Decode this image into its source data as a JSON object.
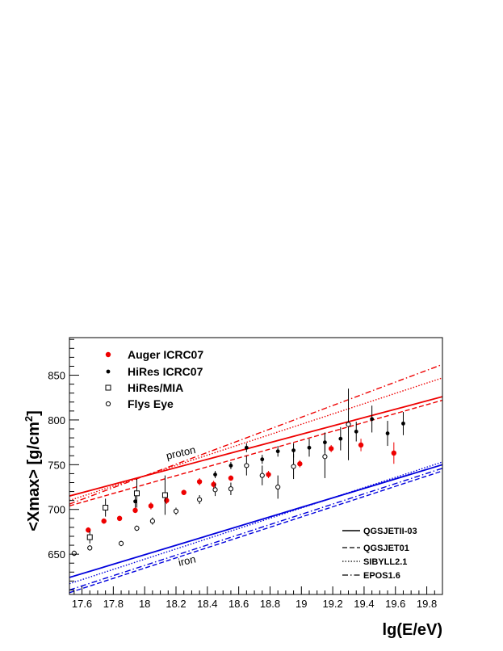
{
  "chart_data": {
    "type": "scatter",
    "xlabel": "lg(E/eV)",
    "ylabel": "<Xmax> [g/cm",
    "ylabel_sup": "2",
    "ylabel_end": "]",
    "xlim": [
      17.52,
      19.9
    ],
    "ylim": [
      605,
      892
    ],
    "x_ticks": [
      17.6,
      17.8,
      18,
      18.2,
      18.4,
      18.6,
      18.8,
      19,
      19.2,
      19.4,
      19.6,
      19.8
    ],
    "x_tick_labels": [
      "17.6",
      "17.8",
      "18",
      "18.2",
      "18.4",
      "18.6",
      "18.8",
      "19",
      "19.2",
      "19.4",
      "19.6",
      "19.8"
    ],
    "y_ticks": [
      650,
      700,
      750,
      800,
      850
    ],
    "y_tick_labels": [
      "650",
      "700",
      "750",
      "800",
      "850"
    ],
    "grid": false,
    "legend_placement": "top-left",
    "data_series": [
      {
        "name": "Auger ICRC07",
        "marker": "filled-circle",
        "color": "#ee0000",
        "points": [
          {
            "x": 17.64,
            "y": 677,
            "err": 3
          },
          {
            "x": 17.74,
            "y": 687,
            "err": 3
          },
          {
            "x": 17.84,
            "y": 690,
            "err": 3
          },
          {
            "x": 17.94,
            "y": 699,
            "err": 3
          },
          {
            "x": 18.04,
            "y": 704,
            "err": 4
          },
          {
            "x": 18.14,
            "y": 710,
            "err": 4
          },
          {
            "x": 18.25,
            "y": 719,
            "err": 3
          },
          {
            "x": 18.35,
            "y": 731,
            "err": 4
          },
          {
            "x": 18.44,
            "y": 728,
            "err": 4
          },
          {
            "x": 18.55,
            "y": 735,
            "err": 3
          },
          {
            "x": 18.79,
            "y": 739,
            "err": 4
          },
          {
            "x": 18.99,
            "y": 751,
            "err": 4
          },
          {
            "x": 19.19,
            "y": 768,
            "err": 4
          },
          {
            "x": 19.38,
            "y": 772,
            "err": 7
          },
          {
            "x": 19.59,
            "y": 763,
            "err": 12
          }
        ]
      },
      {
        "name": "HiRes ICRC07",
        "marker": "filled-circle-small",
        "color": "#000000",
        "points": [
          {
            "x": 17.94,
            "y": 709,
            "err": 7
          },
          {
            "x": 18.45,
            "y": 739,
            "err": 4
          },
          {
            "x": 18.55,
            "y": 749,
            "err": 4
          },
          {
            "x": 18.65,
            "y": 769,
            "err": 5
          },
          {
            "x": 18.75,
            "y": 756,
            "err": 5
          },
          {
            "x": 18.85,
            "y": 765,
            "err": 6
          },
          {
            "x": 18.95,
            "y": 766,
            "err": 8
          },
          {
            "x": 19.05,
            "y": 769,
            "err": 10
          },
          {
            "x": 19.15,
            "y": 775,
            "err": 11
          },
          {
            "x": 19.25,
            "y": 779,
            "err": 13
          },
          {
            "x": 19.35,
            "y": 787,
            "err": 11
          },
          {
            "x": 19.45,
            "y": 801,
            "err": 15
          },
          {
            "x": 19.55,
            "y": 785,
            "err": 14
          },
          {
            "x": 19.65,
            "y": 796,
            "err": 13
          }
        ]
      },
      {
        "name": "HiRes/MIA",
        "marker": "open-square",
        "color": "#000000",
        "points": [
          {
            "x": 17.65,
            "y": 669,
            "err": 7
          },
          {
            "x": 17.75,
            "y": 702,
            "err": 10
          },
          {
            "x": 17.95,
            "y": 718,
            "err": 16
          },
          {
            "x": 18.13,
            "y": 716,
            "err": 22
          }
        ]
      },
      {
        "name": "Flys Eye",
        "marker": "open-circle",
        "color": "#000000",
        "points": [
          {
            "x": 17.55,
            "y": 651,
            "err": 3
          },
          {
            "x": 17.65,
            "y": 657,
            "err": 3
          },
          {
            "x": 17.85,
            "y": 662,
            "err": 3
          },
          {
            "x": 17.95,
            "y": 679,
            "err": 3
          },
          {
            "x": 18.05,
            "y": 687,
            "err": 4
          },
          {
            "x": 18.2,
            "y": 698,
            "err": 4
          },
          {
            "x": 18.35,
            "y": 711,
            "err": 5
          },
          {
            "x": 18.45,
            "y": 722,
            "err": 7
          },
          {
            "x": 18.55,
            "y": 723,
            "err": 7
          },
          {
            "x": 18.65,
            "y": 749,
            "err": 11
          },
          {
            "x": 18.75,
            "y": 738,
            "err": 11
          },
          {
            "x": 18.85,
            "y": 725,
            "err": 13
          },
          {
            "x": 18.95,
            "y": 748,
            "err": 14
          },
          {
            "x": 19.15,
            "y": 759,
            "err": 24
          },
          {
            "x": 19.3,
            "y": 795,
            "err": 40
          }
        ]
      }
    ],
    "model_lines": [
      {
        "name": "QGSJETII-03",
        "style": "solid",
        "proton": [
          [
            17.52,
            715
          ],
          [
            19.9,
            826
          ]
        ],
        "iron": [
          [
            17.52,
            624
          ],
          [
            19.9,
            750
          ]
        ]
      },
      {
        "name": "QGSJET01",
        "style": "dashed",
        "proton": [
          [
            17.52,
            704
          ],
          [
            19.9,
            822
          ]
        ],
        "iron": [
          [
            17.52,
            607
          ],
          [
            19.9,
            743
          ]
        ]
      },
      {
        "name": "SIBYLL2.1",
        "style": "dotted",
        "proton": [
          [
            17.52,
            710
          ],
          [
            19.9,
            847
          ]
        ],
        "iron": [
          [
            17.52,
            617
          ],
          [
            19.9,
            753
          ]
        ]
      },
      {
        "name": "EPOS1.6",
        "style": "dashdot",
        "proton": [
          [
            17.52,
            706
          ],
          [
            19.9,
            862
          ]
        ],
        "iron": [
          [
            17.52,
            610
          ],
          [
            19.9,
            746
          ]
        ]
      }
    ],
    "proton_color": "#ee0000",
    "iron_color": "#0000dd",
    "annotations": {
      "proton": "proton",
      "iron": "iron"
    }
  }
}
